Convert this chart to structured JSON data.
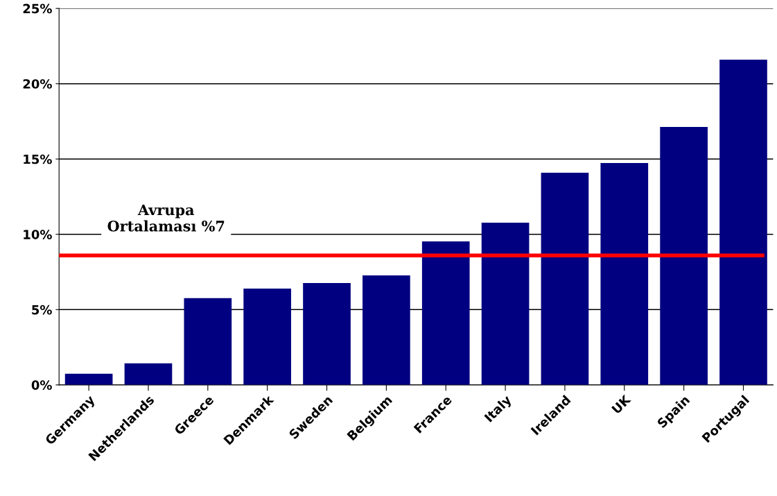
{
  "chart_data": {
    "type": "bar",
    "categories": [
      "Germany",
      "Netherlands",
      "Greece",
      "Denmark",
      "Sweden",
      "Belgium",
      "France",
      "Italy",
      "Ireland",
      "UK",
      "Spain",
      "Portugal"
    ],
    "values": [
      0.74,
      1.43,
      5.76,
      6.4,
      6.77,
      7.27,
      9.53,
      10.77,
      14.09,
      14.73,
      17.13,
      21.6
    ],
    "color": "#000080",
    "ylim": [
      0,
      25
    ],
    "yticks": [
      {
        "value": 0,
        "label": "0%"
      },
      {
        "value": 5,
        "label": "5%"
      },
      {
        "value": 10,
        "label": "10%"
      },
      {
        "value": 15,
        "label": "15%"
      },
      {
        "value": 20,
        "label": "20%"
      },
      {
        "value": 25,
        "label": "25%"
      }
    ],
    "grid": "y",
    "ref_lines": [
      {
        "axis": "y",
        "value": 8.6,
        "label": "Avrupa\nOrtalaması %7",
        "color": "#ff0000",
        "line_style": "solid"
      }
    ]
  }
}
